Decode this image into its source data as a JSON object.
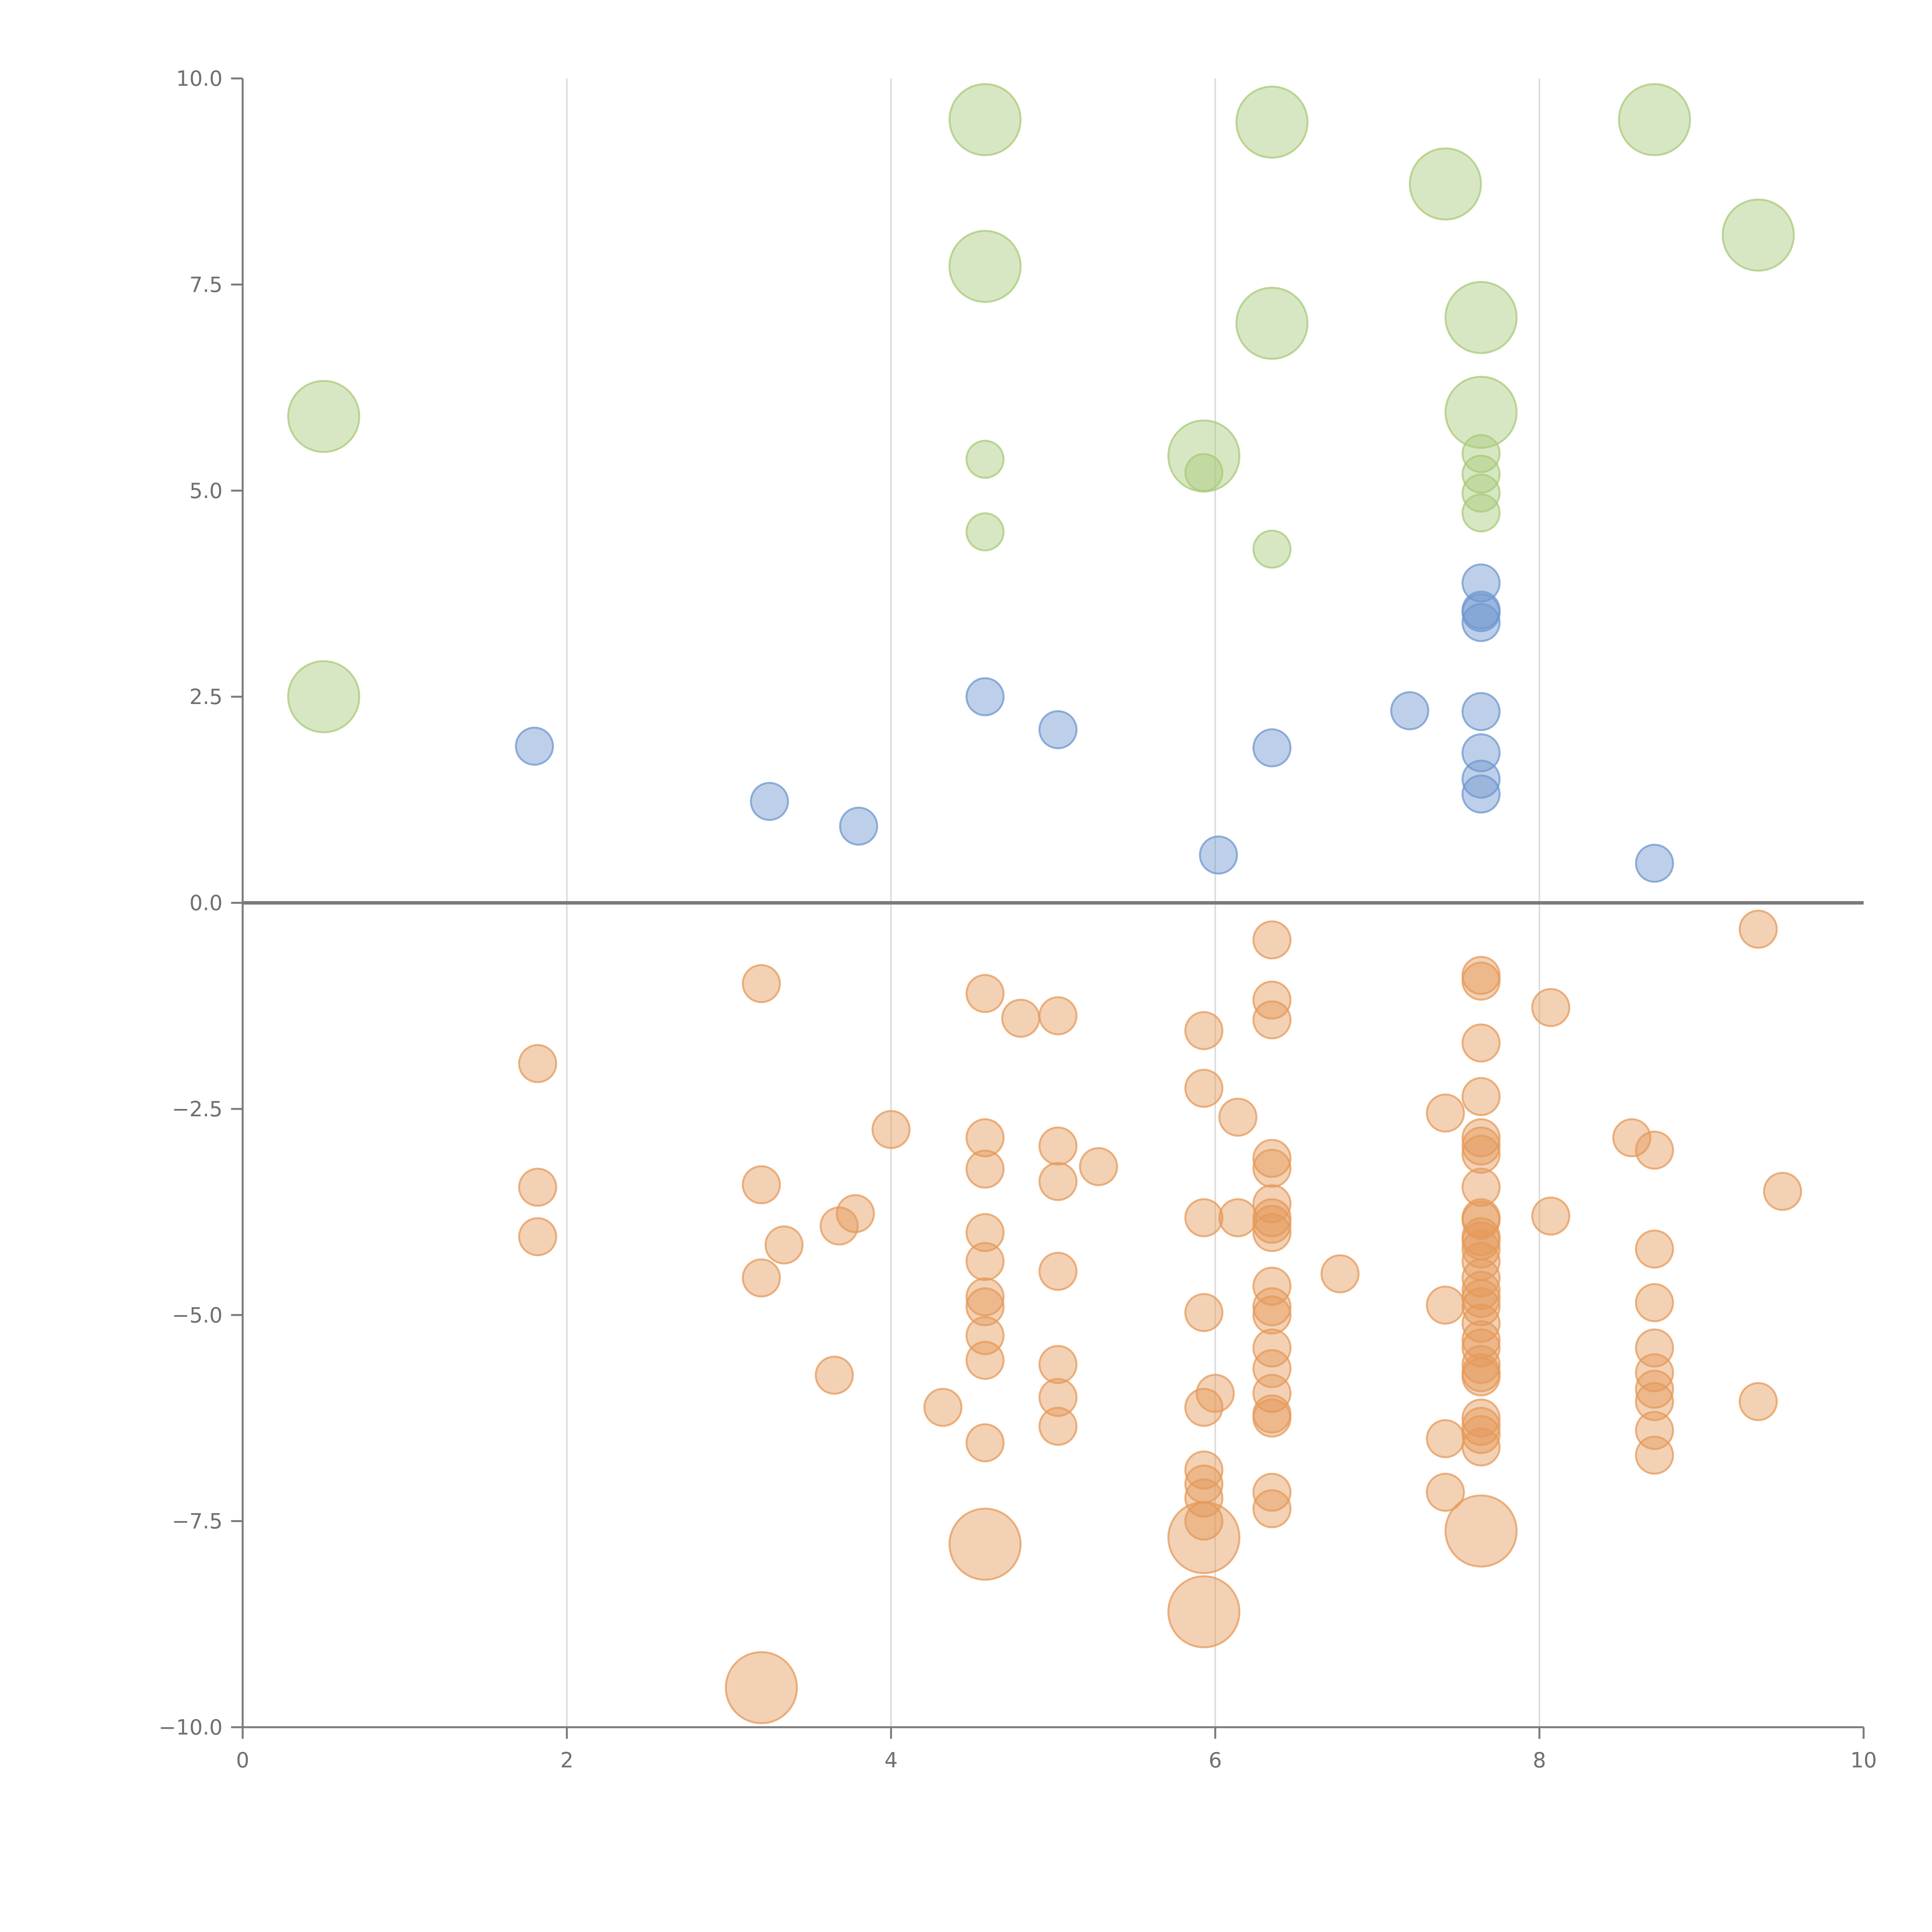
{
  "chart_data": {
    "type": "scatter",
    "title": "",
    "xlabel": "",
    "ylabel": "",
    "xlim": [
      0,
      10
    ],
    "ylim": [
      -10,
      10
    ],
    "x_ticks": [
      "0",
      "2",
      "4",
      "6",
      "8",
      "10"
    ],
    "y_ticks": [
      "−10.0",
      "−7.5",
      "−5.0",
      "−2.5",
      "0.0",
      "2.5",
      "5.0",
      "7.5",
      "10.0"
    ],
    "x_tick_values": [
      0,
      2,
      4,
      6,
      8,
      10
    ],
    "y_tick_values": [
      -10,
      -7.5,
      -5,
      -2.5,
      0,
      2.5,
      5,
      7.5,
      10
    ],
    "vertical_gridlines_at": [
      2,
      4,
      6,
      8
    ],
    "zero_line": 0,
    "colors": {
      "green": "#a9c97a",
      "blue": "#6f97cf",
      "orange": "#e59a5a",
      "axis": "#7a7a7a",
      "grid": "#dcdcdc"
    },
    "series": [
      {
        "name": "green-small",
        "color": "#a9c97a",
        "size": "small",
        "points": [
          [
            4.58,
            5.38
          ],
          [
            4.58,
            4.5
          ],
          [
            5.93,
            5.22
          ],
          [
            6.35,
            4.29
          ],
          [
            7.64,
            5.45
          ],
          [
            7.64,
            5.2
          ],
          [
            7.64,
            4.97
          ],
          [
            7.64,
            4.73
          ]
        ]
      },
      {
        "name": "green-large",
        "color": "#a9c97a",
        "size": "large",
        "points": [
          [
            4.58,
            9.5
          ],
          [
            6.35,
            9.47
          ],
          [
            8.71,
            9.5
          ],
          [
            7.42,
            8.72
          ],
          [
            9.35,
            8.1
          ],
          [
            4.58,
            7.72
          ],
          [
            6.35,
            7.03
          ],
          [
            7.64,
            7.1
          ],
          [
            0.5,
            5.9
          ],
          [
            5.93,
            5.42
          ],
          [
            7.64,
            5.95
          ],
          [
            0.5,
            2.5
          ]
        ]
      },
      {
        "name": "blue",
        "color": "#6f97cf",
        "size": "small",
        "points": [
          [
            1.8,
            1.9
          ],
          [
            3.25,
            1.23
          ],
          [
            3.8,
            0.93
          ],
          [
            4.58,
            2.5
          ],
          [
            5.03,
            2.1
          ],
          [
            6.02,
            0.58
          ],
          [
            6.35,
            1.88
          ],
          [
            7.2,
            2.33
          ],
          [
            7.64,
            3.88
          ],
          [
            7.64,
            3.55
          ],
          [
            7.64,
            3.52
          ],
          [
            7.64,
            3.4
          ],
          [
            7.64,
            2.32
          ],
          [
            7.64,
            1.82
          ],
          [
            7.64,
            1.5
          ],
          [
            7.64,
            1.32
          ],
          [
            8.71,
            0.48
          ]
        ]
      },
      {
        "name": "orange-small",
        "color": "#e59a5a",
        "size": "small",
        "points": [
          [
            1.82,
            -1.95
          ],
          [
            1.82,
            -3.45
          ],
          [
            1.82,
            -4.05
          ],
          [
            3.2,
            -0.98
          ],
          [
            3.2,
            -3.42
          ],
          [
            3.2,
            -4.55
          ],
          [
            3.34,
            -4.15
          ],
          [
            3.65,
            -5.73
          ],
          [
            3.68,
            -3.92
          ],
          [
            3.78,
            -3.77
          ],
          [
            4.0,
            -2.75
          ],
          [
            4.32,
            -6.12
          ],
          [
            4.58,
            -1.1
          ],
          [
            4.58,
            -2.85
          ],
          [
            4.58,
            -3.23
          ],
          [
            4.58,
            -4.0
          ],
          [
            4.58,
            -4.35
          ],
          [
            4.58,
            -4.78
          ],
          [
            4.58,
            -4.9
          ],
          [
            4.58,
            -5.25
          ],
          [
            4.58,
            -5.55
          ],
          [
            4.58,
            -6.55
          ],
          [
            4.8,
            -1.4
          ],
          [
            5.03,
            -1.37
          ],
          [
            5.03,
            -2.95
          ],
          [
            5.03,
            -3.38
          ],
          [
            5.03,
            -4.47
          ],
          [
            5.03,
            -5.6
          ],
          [
            5.03,
            -6.0
          ],
          [
            5.03,
            -6.35
          ],
          [
            5.28,
            -3.2
          ],
          [
            5.93,
            -1.55
          ],
          [
            5.93,
            -2.25
          ],
          [
            5.93,
            -3.82
          ],
          [
            5.93,
            -4.97
          ],
          [
            5.93,
            -6.12
          ],
          [
            5.93,
            -6.88
          ],
          [
            5.93,
            -7.05
          ],
          [
            5.93,
            -7.22
          ],
          [
            5.93,
            -7.5
          ],
          [
            6.0,
            -5.95
          ],
          [
            6.14,
            -3.82
          ],
          [
            6.14,
            -2.6
          ],
          [
            6.35,
            -0.45
          ],
          [
            6.35,
            -1.18
          ],
          [
            6.35,
            -1.42
          ],
          [
            6.35,
            -3.1
          ],
          [
            6.35,
            -3.22
          ],
          [
            6.35,
            -3.65
          ],
          [
            6.35,
            -3.82
          ],
          [
            6.35,
            -3.9
          ],
          [
            6.35,
            -4.0
          ],
          [
            6.35,
            -4.65
          ],
          [
            6.35,
            -4.9
          ],
          [
            6.35,
            -5.0
          ],
          [
            6.35,
            -5.4
          ],
          [
            6.35,
            -5.65
          ],
          [
            6.35,
            -5.95
          ],
          [
            6.35,
            -6.2
          ],
          [
            6.35,
            -6.25
          ],
          [
            6.35,
            -7.15
          ],
          [
            6.35,
            -7.35
          ],
          [
            6.77,
            -4.5
          ],
          [
            7.42,
            -2.55
          ],
          [
            7.42,
            -4.88
          ],
          [
            7.42,
            -6.5
          ],
          [
            7.42,
            -7.15
          ],
          [
            7.64,
            -0.88
          ],
          [
            7.64,
            -0.95
          ],
          [
            7.64,
            -1.7
          ],
          [
            7.64,
            -2.35
          ],
          [
            7.64,
            -2.85
          ],
          [
            7.64,
            -2.95
          ],
          [
            7.64,
            -3.05
          ],
          [
            7.64,
            -3.45
          ],
          [
            7.64,
            -3.82
          ],
          [
            7.64,
            -3.85
          ],
          [
            7.64,
            -4.05
          ],
          [
            7.64,
            -4.1
          ],
          [
            7.64,
            -4.2
          ],
          [
            7.64,
            -4.35
          ],
          [
            7.64,
            -4.55
          ],
          [
            7.64,
            -4.7
          ],
          [
            7.64,
            -4.8
          ],
          [
            7.64,
            -4.9
          ],
          [
            7.64,
            -5.1
          ],
          [
            7.64,
            -5.3
          ],
          [
            7.64,
            -5.4
          ],
          [
            7.64,
            -5.6
          ],
          [
            7.64,
            -5.7
          ],
          [
            7.64,
            -5.75
          ],
          [
            7.64,
            -6.25
          ],
          [
            7.64,
            -6.35
          ],
          [
            7.64,
            -6.45
          ],
          [
            7.64,
            -6.6
          ],
          [
            8.07,
            -1.27
          ],
          [
            8.07,
            -3.8
          ],
          [
            8.57,
            -2.85
          ],
          [
            8.71,
            -3.0
          ],
          [
            8.71,
            -4.2
          ],
          [
            8.71,
            -4.85
          ],
          [
            8.71,
            -5.4
          ],
          [
            8.71,
            -5.7
          ],
          [
            8.71,
            -5.9
          ],
          [
            8.71,
            -6.05
          ],
          [
            8.71,
            -6.4
          ],
          [
            8.71,
            -6.7
          ],
          [
            9.35,
            -0.32
          ],
          [
            9.35,
            -6.05
          ],
          [
            9.5,
            -3.5
          ]
        ]
      },
      {
        "name": "orange-large",
        "color": "#e59a5a",
        "size": "large",
        "points": [
          [
            4.58,
            -7.78
          ],
          [
            5.93,
            -7.7
          ],
          [
            7.64,
            -7.62
          ],
          [
            5.93,
            -8.6
          ],
          [
            3.2,
            -9.52
          ]
        ]
      }
    ]
  }
}
